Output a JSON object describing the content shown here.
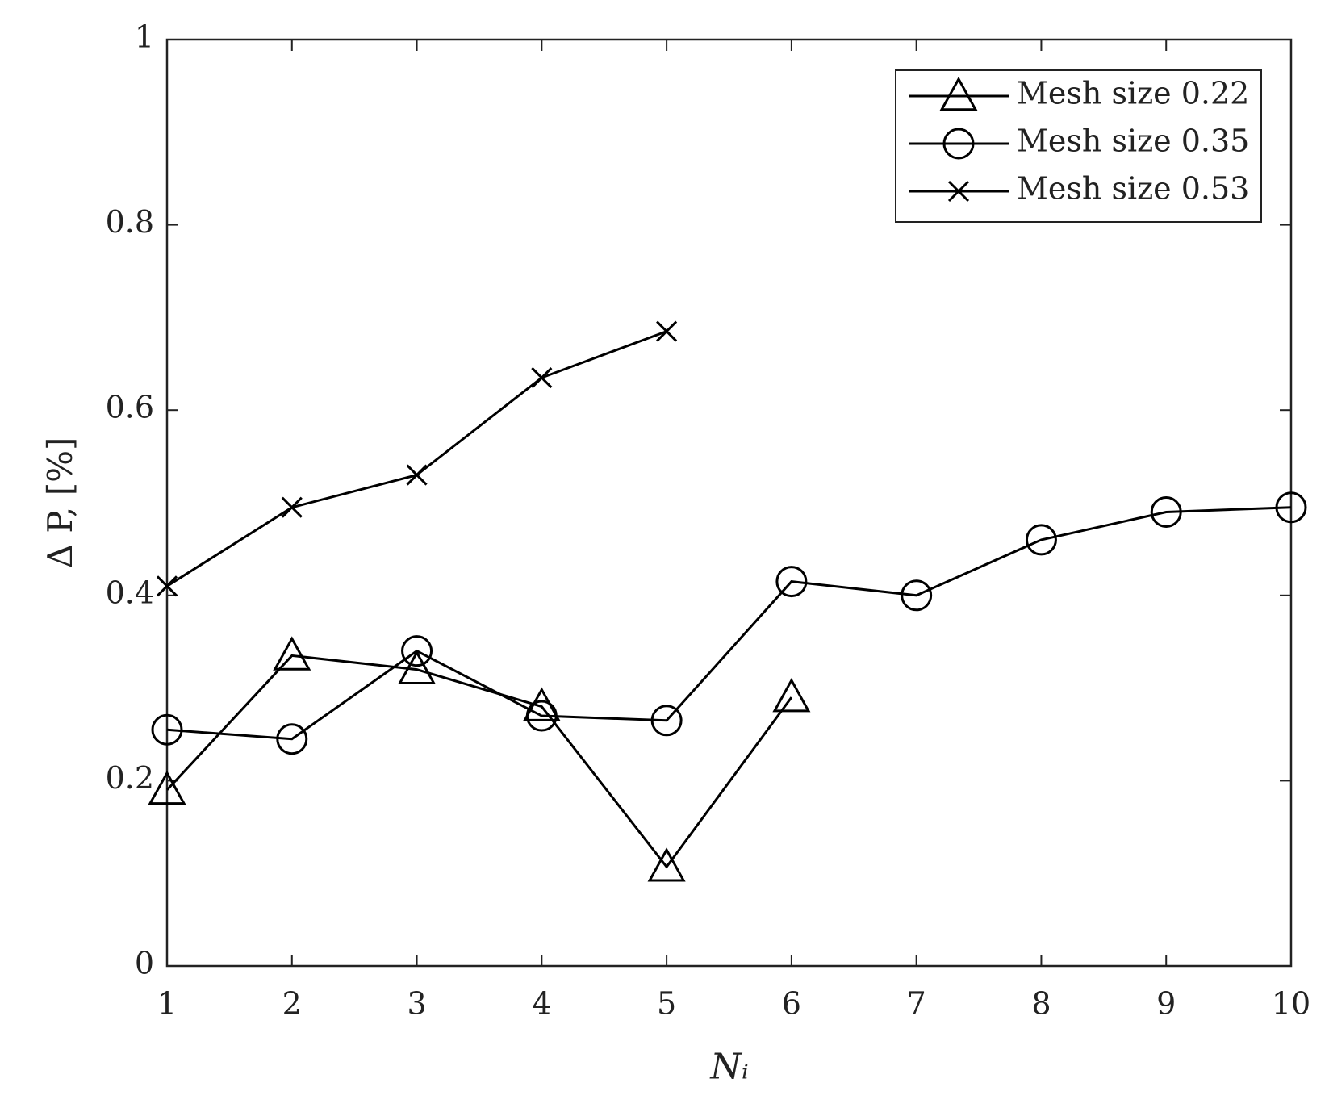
{
  "chart_data": {
    "type": "line",
    "x_label": "Nᵢ",
    "y_label": "Δ P, [%]",
    "x": [
      1,
      2,
      3,
      4,
      5,
      6,
      7,
      8,
      9,
      10
    ],
    "series": [
      {
        "name": "Mesh size 0.22",
        "color": "#000000",
        "marker": "triangle",
        "values": [
          0.19,
          0.335,
          0.32,
          0.28,
          0.107,
          0.29,
          null,
          null,
          null,
          null
        ]
      },
      {
        "name": "Mesh size 0.35",
        "color": "#000000",
        "marker": "circle",
        "values": [
          0.255,
          0.245,
          0.34,
          0.27,
          0.265,
          0.415,
          0.4,
          0.46,
          0.49,
          0.495
        ]
      },
      {
        "name": "Mesh size 0.53",
        "color": "#000000",
        "marker": "x",
        "values": [
          0.41,
          0.495,
          0.53,
          0.635,
          0.685,
          null,
          null,
          null,
          null,
          null
        ]
      }
    ],
    "xlim": [
      1,
      10
    ],
    "xticks": [
      1,
      2,
      3,
      4,
      5,
      6,
      7,
      8,
      9,
      10
    ],
    "ylim": [
      0,
      1
    ],
    "yticks": [
      0,
      0.2,
      0.4,
      0.6,
      0.8,
      1
    ],
    "grid": false,
    "legend_position": "upper right"
  }
}
